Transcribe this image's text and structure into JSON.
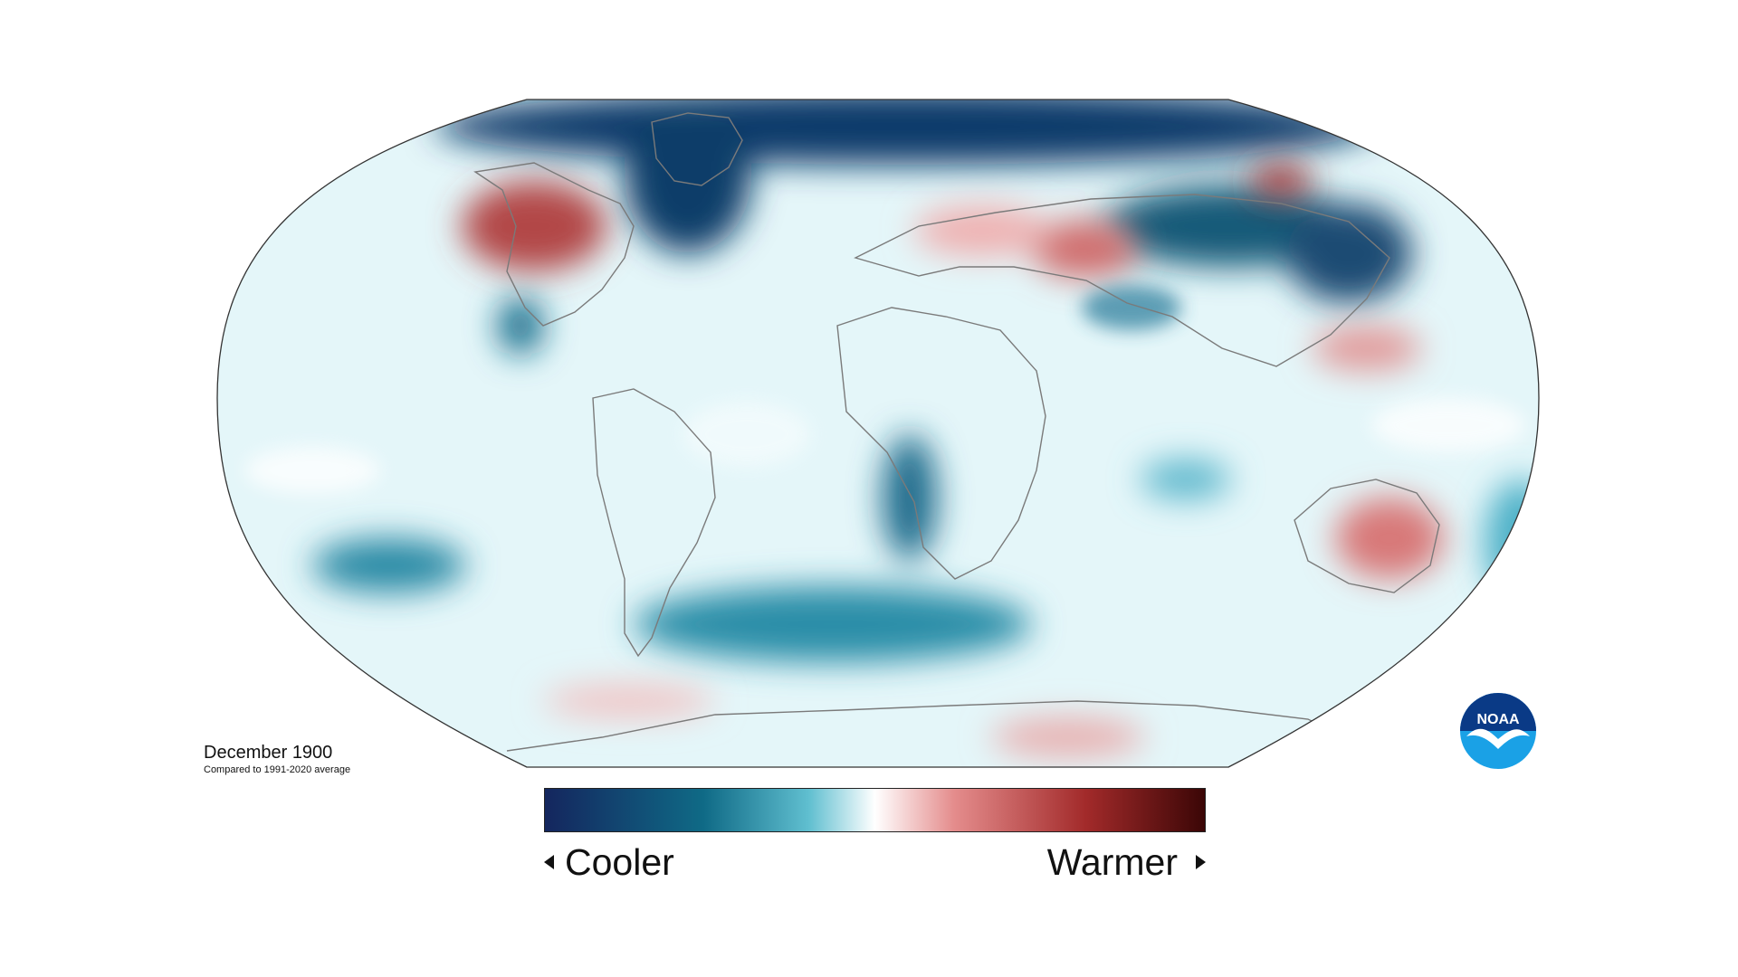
{
  "caption": {
    "title": "December 1900",
    "subtitle": "Compared to 1991-2020 average"
  },
  "legend": {
    "low_label": "Cooler",
    "high_label": "Warmer",
    "low_icon": "left-triangle-icon",
    "high_icon": "right-triangle-icon",
    "colors": [
      "#14265e",
      "#0f6a86",
      "#60bfd0",
      "#ffffff",
      "#e48c8c",
      "#a22a2a",
      "#3b0606"
    ]
  },
  "logo": {
    "text": "NOAA",
    "icon": "noaa-logo-icon",
    "colors": [
      "#0a3a86",
      "#1aa1e6",
      "#ffffff"
    ]
  },
  "map": {
    "projection": "robinson",
    "outline_color": "#333333",
    "border_color": "#7a7a7a"
  }
}
